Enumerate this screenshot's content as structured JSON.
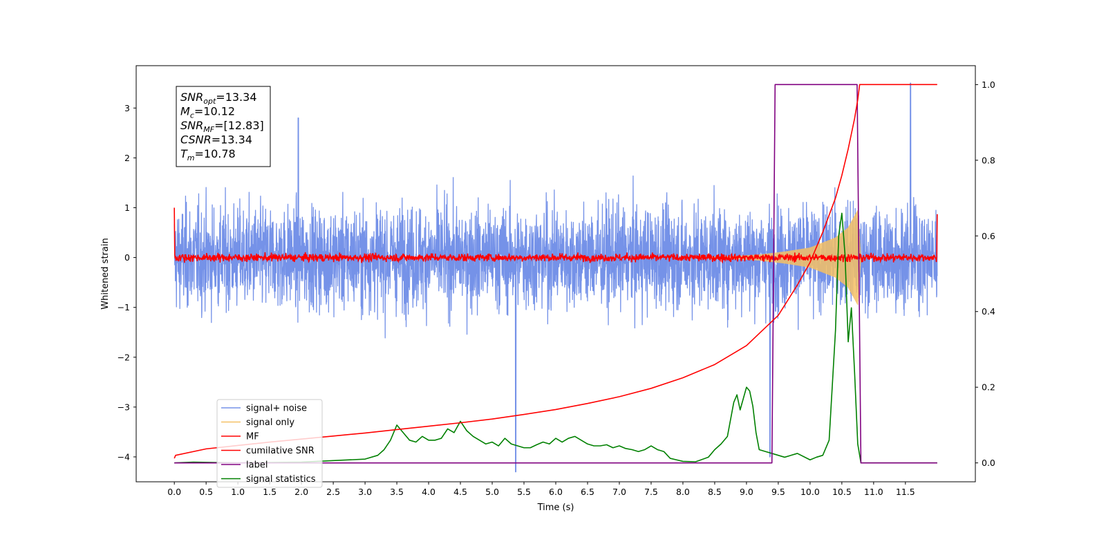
{
  "chart_data": {
    "type": "line",
    "xlabel": "Time (s)",
    "ylabel": "Whitened strain",
    "xlim": [
      -0.6,
      12.6
    ],
    "ylim_left": [
      -4.5,
      3.85
    ],
    "ylim_right": [
      -0.05,
      1.05
    ],
    "x_ticks": [
      "0.0",
      "0.5",
      "1.0",
      "1.5",
      "2.0",
      "2.5",
      "3.0",
      "3.5",
      "4.0",
      "4.5",
      "5.0",
      "5.5",
      "6.0",
      "6.5",
      "7.0",
      "7.5",
      "8.0",
      "8.5",
      "9.0",
      "9.5",
      "10.0",
      "10.5",
      "11.0",
      "11.5"
    ],
    "y_ticks_left": [
      "3",
      "2",
      "1",
      "0",
      "−1",
      "−2",
      "−3",
      "−4"
    ],
    "y_ticks_right": [
      "1.0",
      "0.8",
      "0.6",
      "0.4",
      "0.2",
      "0.0"
    ],
    "grid": false,
    "legend_position": "lower-left",
    "annotation": {
      "lines": [
        {
          "base": "SNR",
          "sub": "opt",
          "value": "=13.34"
        },
        {
          "base": "M",
          "sub": "c",
          "value": "=10.12"
        },
        {
          "base": "SNR",
          "sub": "MF",
          "value": "=[12.83]"
        },
        {
          "base": "CSNR",
          "sub": "",
          "value": "=13.34"
        },
        {
          "base": "T",
          "sub": "m",
          "value": "=10.78"
        }
      ]
    },
    "series": [
      {
        "name": "signal+ noise",
        "color": "#7592e8",
        "axis": "left",
        "kind": "noise",
        "x_range": [
          0,
          12
        ],
        "amplitude_envelope": [
          [
            0,
            1.6
          ],
          [
            12,
            1.6
          ]
        ],
        "spikes": [
          [
            1.95,
            2.8
          ],
          [
            5.37,
            -4.3
          ],
          [
            9.37,
            -4.0
          ],
          [
            11.58,
            3.5
          ]
        ],
        "signal_region": [
          9.4,
          10.8
        ]
      },
      {
        "name": "signal only",
        "color": "#f5c064",
        "axis": "left",
        "kind": "chirp",
        "envelope": [
          [
            8.2,
            0.0
          ],
          [
            8.8,
            0.03
          ],
          [
            9.2,
            0.06
          ],
          [
            9.6,
            0.12
          ],
          [
            10.0,
            0.2
          ],
          [
            10.4,
            0.4
          ],
          [
            10.6,
            0.6
          ],
          [
            10.75,
            0.95
          ],
          [
            10.8,
            0.0
          ]
        ]
      },
      {
        "name": "MF",
        "color": "#ff0000",
        "axis": "left",
        "kind": "noise",
        "x_range": [
          0,
          12
        ],
        "amplitude": 0.08,
        "edges": [
          [
            0,
            1.0
          ],
          [
            12,
            0.87
          ]
        ]
      },
      {
        "name": "cumilative SNR",
        "color": "#ff0000",
        "axis": "right",
        "x": [
          0,
          0.02,
          0.5,
          1.0,
          1.5,
          2.0,
          2.5,
          3.0,
          3.5,
          4.0,
          4.5,
          5.0,
          5.5,
          6.0,
          6.5,
          7.0,
          7.5,
          8.0,
          8.5,
          9.0,
          9.5,
          9.8,
          10.0,
          10.2,
          10.4,
          10.5,
          10.6,
          10.7,
          10.75,
          10.78,
          12.0
        ],
        "values": [
          0.012,
          0.02,
          0.037,
          0.046,
          0.055,
          0.063,
          0.071,
          0.079,
          0.088,
          0.097,
          0.106,
          0.116,
          0.128,
          0.141,
          0.157,
          0.175,
          0.197,
          0.225,
          0.26,
          0.31,
          0.39,
          0.47,
          0.53,
          0.61,
          0.7,
          0.76,
          0.83,
          0.91,
          0.96,
          1.0,
          1.0
        ]
      },
      {
        "name": "label",
        "color": "#800080",
        "axis": "right",
        "x": [
          0,
          9.4,
          9.45,
          10.74,
          10.8,
          12.0
        ],
        "values": [
          0,
          0,
          1,
          1,
          0,
          0
        ]
      },
      {
        "name": "signal statistics",
        "color": "#008000",
        "axis": "right",
        "x": [
          0,
          0.3,
          1.0,
          2.0,
          2.5,
          3.0,
          3.2,
          3.3,
          3.4,
          3.5,
          3.6,
          3.7,
          3.8,
          3.9,
          4.0,
          4.1,
          4.2,
          4.3,
          4.4,
          4.5,
          4.6,
          4.7,
          4.8,
          4.9,
          5.0,
          5.1,
          5.2,
          5.3,
          5.4,
          5.5,
          5.6,
          5.7,
          5.8,
          5.9,
          6.0,
          6.1,
          6.2,
          6.3,
          6.4,
          6.5,
          6.6,
          6.7,
          6.8,
          6.9,
          7.0,
          7.1,
          7.2,
          7.3,
          7.4,
          7.5,
          7.6,
          7.7,
          7.8,
          7.9,
          8.0,
          8.2,
          8.4,
          8.5,
          8.6,
          8.7,
          8.8,
          8.85,
          8.9,
          8.95,
          9.0,
          9.05,
          9.1,
          9.15,
          9.2,
          9.3,
          9.4,
          9.6,
          9.8,
          10.0,
          10.1,
          10.2,
          10.3,
          10.4,
          10.45,
          10.5,
          10.55,
          10.6,
          10.65,
          10.7,
          10.75,
          10.8,
          12.0
        ],
        "values": [
          0.0,
          0.002,
          0.0,
          0.002,
          0.006,
          0.01,
          0.02,
          0.035,
          0.06,
          0.1,
          0.08,
          0.06,
          0.055,
          0.07,
          0.06,
          0.06,
          0.065,
          0.09,
          0.08,
          0.11,
          0.085,
          0.07,
          0.06,
          0.05,
          0.055,
          0.045,
          0.065,
          0.05,
          0.045,
          0.04,
          0.04,
          0.048,
          0.055,
          0.05,
          0.065,
          0.055,
          0.065,
          0.07,
          0.06,
          0.05,
          0.045,
          0.045,
          0.048,
          0.04,
          0.045,
          0.038,
          0.035,
          0.03,
          0.035,
          0.045,
          0.035,
          0.03,
          0.012,
          0.008,
          0.004,
          0.003,
          0.015,
          0.035,
          0.05,
          0.07,
          0.16,
          0.18,
          0.14,
          0.17,
          0.2,
          0.19,
          0.15,
          0.08,
          0.035,
          0.03,
          0.025,
          0.015,
          0.025,
          0.008,
          0.015,
          0.02,
          0.06,
          0.35,
          0.6,
          0.66,
          0.55,
          0.32,
          0.41,
          0.24,
          0.05,
          0.0,
          0.0
        ]
      }
    ]
  }
}
